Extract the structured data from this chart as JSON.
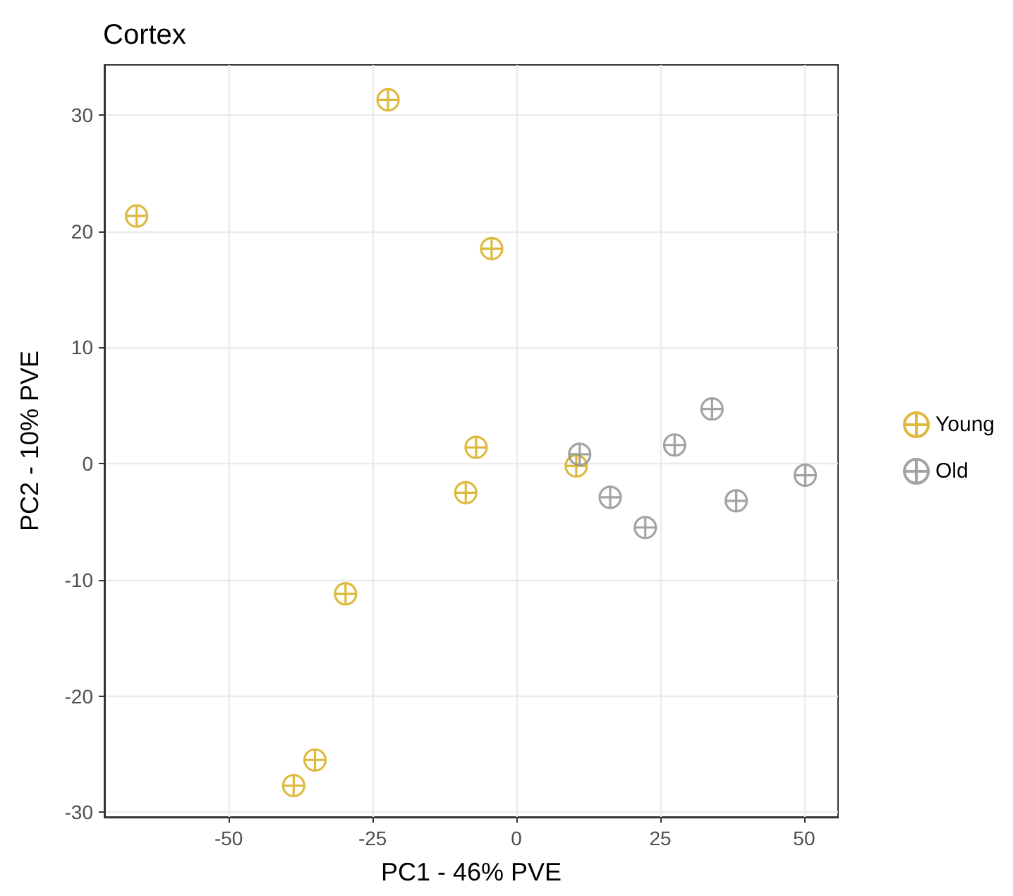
{
  "chart_data": {
    "type": "scatter",
    "title": "Cortex",
    "xlabel": "PC1 - 46% PVE",
    "ylabel": "PC2 - 10% PVE",
    "xlim": [
      -71.6,
      55.9
    ],
    "xticks": [
      -50,
      -25,
      0,
      25,
      50
    ],
    "ylim": [
      -30.4,
      34.3
    ],
    "yticks": [
      -30,
      -20,
      -10,
      0,
      10,
      20,
      30
    ],
    "grid": true,
    "legend": "right",
    "marker": "cross",
    "series": [
      {
        "name": "Young",
        "color": "#d4a90e",
        "x": [
          -66.0,
          -22.3,
          -4.3,
          -7.0,
          -8.8,
          -29.7,
          -35.0,
          -38.7,
          10.4
        ],
        "values": [
          21.3,
          31.3,
          18.5,
          1.4,
          -2.5,
          -11.2,
          -25.5,
          -27.7,
          -0.2
        ]
      },
      {
        "name": "Old",
        "color": "#8c8c8c",
        "x": [
          11.0,
          16.3,
          22.4,
          27.5,
          34.0,
          38.2,
          50.2
        ],
        "values": [
          0.8,
          -2.9,
          -5.5,
          1.6,
          4.7,
          -3.2,
          -1.0
        ]
      }
    ]
  }
}
